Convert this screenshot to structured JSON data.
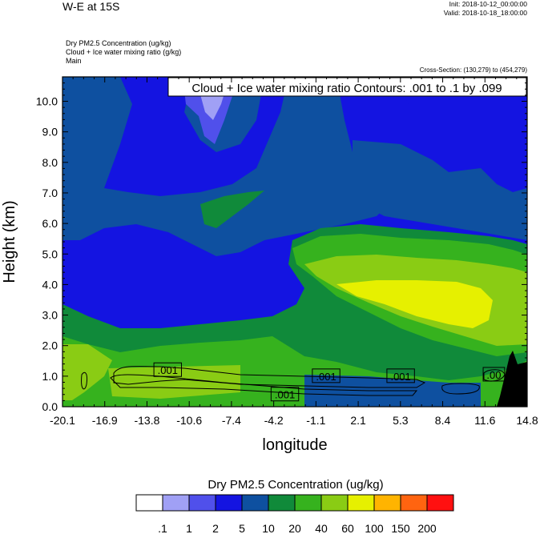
{
  "header": {
    "title": "W-E at 15S",
    "init": "Init: 2018-10-12_00:00:00",
    "valid": "Valid: 2018-10-18_18:00:00",
    "field1": "Dry PM2.5 Concentration    (ug/kg)",
    "field2": "Cloud + Ice water mixing ratio    (g/kg)",
    "field3": "Main",
    "cross_section": "Cross-Section: (130,279) to (454,279)"
  },
  "chart_data": {
    "type": "heatmap",
    "title": "",
    "xlabel": "longitude",
    "ylabel": "Height (km)",
    "x_ticks": [
      "-20.1",
      "-16.9",
      "-13.8",
      "-10.6",
      "-7.4",
      "-4.2",
      "-1.1",
      "2.1",
      "5.3",
      "8.4",
      "11.6",
      "14.8"
    ],
    "x_range": [
      -20.1,
      14.8
    ],
    "y_ticks": [
      "0.0",
      "1.0",
      "2.0",
      "3.0",
      "4.0",
      "5.0",
      "6.0",
      "7.0",
      "8.0",
      "9.0",
      "10.0"
    ],
    "y_range": [
      0,
      10.8
    ],
    "contour_info": "Cloud + Ice water mixing ratio Contours: .001 to .1 by .099",
    "contour_labels": [
      {
        "text": ".001",
        "x": -12.2,
        "y": 1.2
      },
      {
        "text": ".001",
        "x": -3.4,
        "y": 0.4
      },
      {
        "text": ".001",
        "x": -0.3,
        "y": 1.0
      },
      {
        "text": ".001",
        "x": 5.3,
        "y": 1.0
      },
      {
        "text": ".00",
        "x": 12.3,
        "y": 1.05
      }
    ],
    "legend": {
      "title": "Dry PM2.5 Concentration  (ug/kg)",
      "boundaries": [
        ".1",
        "1",
        "2",
        "5",
        "10",
        "20",
        "40",
        "60",
        "100",
        "150",
        "200"
      ],
      "colors": [
        "#ffffff",
        "#a0a0f5",
        "#5050eb",
        "#1414e1",
        "#0e50a0",
        "#108a3a",
        "#36b21e",
        "#8acc14",
        "#e6f000",
        "#ffb400",
        "#ff6410",
        "#ff1010"
      ]
    },
    "terrain_color": "#000000"
  }
}
